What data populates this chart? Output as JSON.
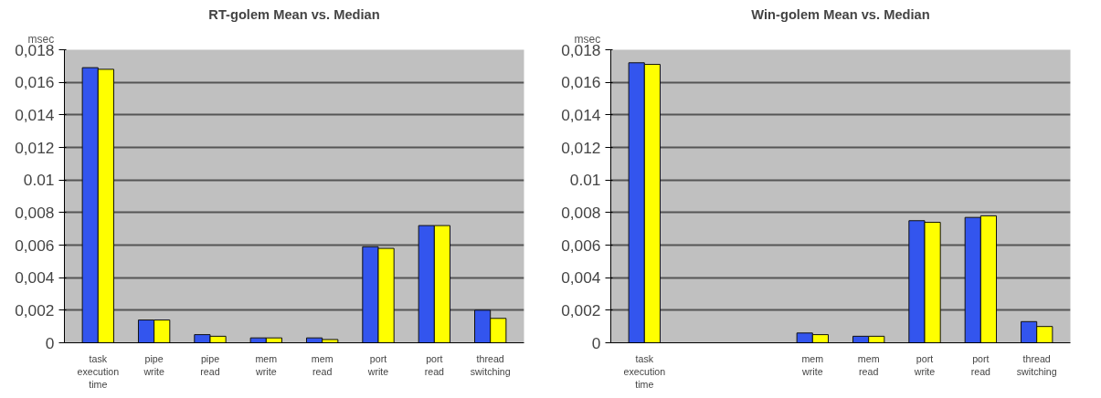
{
  "chart_data": [
    {
      "type": "bar",
      "title": "RT-golem Mean vs. Median",
      "ylabel": "msec",
      "categories": [
        "task execution time",
        "pipe write",
        "pipe read",
        "mem write",
        "mem read",
        "port write",
        "port read",
        "thread switching"
      ],
      "series": [
        {
          "color": "#3355ee",
          "values": [
            0.0169,
            0.0014,
            0.0005,
            0.0003,
            0.0003,
            0.0059,
            0.0072,
            0.002
          ]
        },
        {
          "color": "#ffff00",
          "values": [
            0.0168,
            0.0014,
            0.0004,
            0.0003,
            0.0002,
            0.0058,
            0.0072,
            0.0015
          ]
        }
      ],
      "ylim": [
        0,
        0.018
      ],
      "yticks": [
        0,
        {
          "value": 0.002,
          "label": "0,002"
        },
        {
          "value": 0.004,
          "label": "0,004"
        },
        {
          "value": 0.006,
          "label": "0,006"
        },
        {
          "value": 0.008,
          "label": "0,008"
        },
        0.01,
        {
          "value": 0.012,
          "label": "0,012"
        },
        {
          "value": 0.014,
          "label": "0,014"
        },
        {
          "value": 0.016,
          "label": "0,016"
        },
        {
          "value": 0.018,
          "label": "0,018"
        }
      ],
      "grid": "y"
    },
    {
      "type": "bar",
      "title": "Win-golem Mean vs. Median",
      "ylabel": "msec",
      "categories": [
        "task execution time",
        null,
        null,
        "mem write",
        "mem read",
        "port write",
        "port read",
        "thread switching"
      ],
      "series": [
        {
          "color": "#3355ee",
          "values": [
            0.0172,
            null,
            null,
            0.0006,
            0.0004,
            0.0075,
            0.0077,
            0.0013
          ]
        },
        {
          "color": "#ffff00",
          "values": [
            0.0171,
            null,
            null,
            0.0005,
            0.0004,
            0.0074,
            0.0078,
            0.001
          ]
        }
      ],
      "ylim": [
        0,
        0.018
      ],
      "yticks": [
        0,
        {
          "value": 0.002,
          "label": "0,002"
        },
        {
          "value": 0.004,
          "label": "0,004"
        },
        {
          "value": 0.006,
          "label": "0,006"
        },
        {
          "value": 0.008,
          "label": "0,008"
        },
        0.01,
        {
          "value": 0.012,
          "label": "0,012"
        },
        {
          "value": 0.014,
          "label": "0,014"
        },
        {
          "value": 0.016,
          "label": "0,016"
        },
        {
          "value": 0.018,
          "label": "0,018"
        }
      ],
      "grid": "y"
    }
  ]
}
